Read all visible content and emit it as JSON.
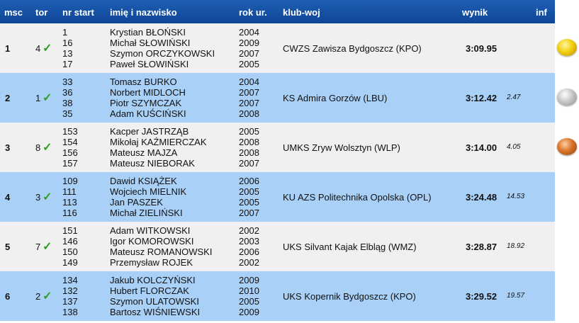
{
  "headers": {
    "msc": "msc",
    "tor": "tor",
    "nr_start": "nr start",
    "name": "imię i nazwisko",
    "year": "rok ur.",
    "club": "klub-woj",
    "result": "wynik",
    "inf": "inf"
  },
  "check_glyph": "✓",
  "rows": [
    {
      "msc": "1",
      "tor": "4",
      "nr": [
        "1",
        "16",
        "13",
        "17"
      ],
      "names": [
        "Krystian BŁOŃSKI",
        "Michał SŁOWIŃSKI",
        "Szymon ORCZYKOWSKI",
        "Paweł SŁOWIŃSKI"
      ],
      "years": [
        "2004",
        "2009",
        "2007",
        "2005"
      ],
      "club": "CWZS Zawisza Bydgoszcz (KPO)",
      "result": "3:09.95",
      "diff": "",
      "medal": "gold-medal-icon"
    },
    {
      "msc": "2",
      "tor": "1",
      "nr": [
        "33",
        "36",
        "38",
        "35"
      ],
      "names": [
        "Tomasz BURKO",
        "Norbert MIDLOCH",
        "Piotr SZYMCZAK",
        "Adam KUŚCIŃSKI"
      ],
      "years": [
        "2004",
        "2007",
        "2007",
        "2008"
      ],
      "club": "KS Admira Gorzów (LBU)",
      "result": "3:12.42",
      "diff": "2.47",
      "medal": "silver-medal-icon"
    },
    {
      "msc": "3",
      "tor": "8",
      "nr": [
        "153",
        "154",
        "156",
        "157"
      ],
      "names": [
        "Kacper JASTRZĄB",
        "Mikołaj KAŹMIERCZAK",
        "Mateusz MAJZA",
        "Mateusz NIEBORAK"
      ],
      "years": [
        "2005",
        "2008",
        "2008",
        "2007"
      ],
      "club": "UMKS Zryw Wolsztyn (WLP)",
      "result": "3:14.00",
      "diff": "4.05",
      "medal": "bronze-medal-icon"
    },
    {
      "msc": "4",
      "tor": "3",
      "nr": [
        "109",
        "111",
        "113",
        "116"
      ],
      "names": [
        "Dawid KSIĄŻEK",
        "Wojciech MIELNIK",
        "Jan PASZEK",
        "Michał ZIELIŃSKI"
      ],
      "years": [
        "2006",
        "2005",
        "2005",
        "2007"
      ],
      "club": "KU AZS Politechnika Opolska (OPL)",
      "result": "3:24.48",
      "diff": "14.53",
      "medal": ""
    },
    {
      "msc": "5",
      "tor": "7",
      "nr": [
        "151",
        "146",
        "150",
        "149"
      ],
      "names": [
        "Adam WITKOWSKI",
        "Igor KOMOROWSKI",
        "Mateusz ROMANOWSKI",
        "Przemysław ROJEK"
      ],
      "years": [
        "2002",
        "2003",
        "2006",
        "2002"
      ],
      "club": "UKS Silvant Kajak Elbląg (WMZ)",
      "result": "3:28.87",
      "diff": "18.92",
      "medal": ""
    },
    {
      "msc": "6",
      "tor": "2",
      "nr": [
        "134",
        "132",
        "137",
        "138"
      ],
      "names": [
        "Jakub KOLCZYŃSKI",
        "Hubert FLORCZAK",
        "Szymon ULATOWSKI",
        "Bartosz WIŚNIEWSKI"
      ],
      "years": [
        "2009",
        "2010",
        "2005",
        "2009"
      ],
      "club": "UKS Kopernik Bydgoszcz (KPO)",
      "result": "3:29.52",
      "diff": "19.57",
      "medal": ""
    }
  ]
}
